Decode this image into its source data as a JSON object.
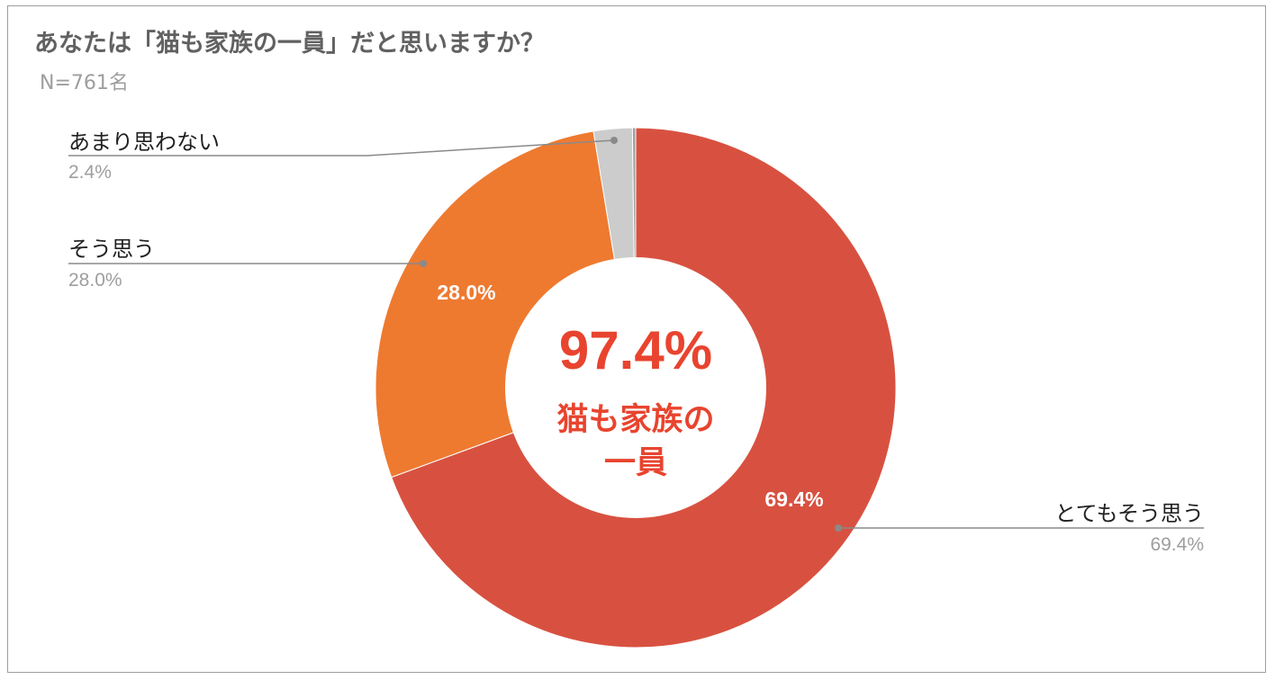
{
  "chart_data": {
    "type": "pie",
    "title": "あなたは「猫も家族の一員」だと思いますか？",
    "subtitle": "N=761名",
    "categories": [
      "とてもそう思う",
      "そう思う",
      "あまり思わない",
      ""
    ],
    "values": [
      69.4,
      28.0,
      2.4,
      0.2
    ],
    "value_labels": [
      "69.4%",
      "28.0%",
      "2.4%",
      ""
    ],
    "slice_labels": [
      "69.4%",
      "28.0%",
      "",
      ""
    ],
    "colors": [
      "#d85140",
      "#ee7a30",
      "#cccccc",
      "#9e9e9e"
    ],
    "donut": true,
    "center": {
      "value": "97.4%",
      "line1": "猫も家族の",
      "line2": "一員",
      "color": "#e8442f"
    },
    "legend": "callouts"
  }
}
